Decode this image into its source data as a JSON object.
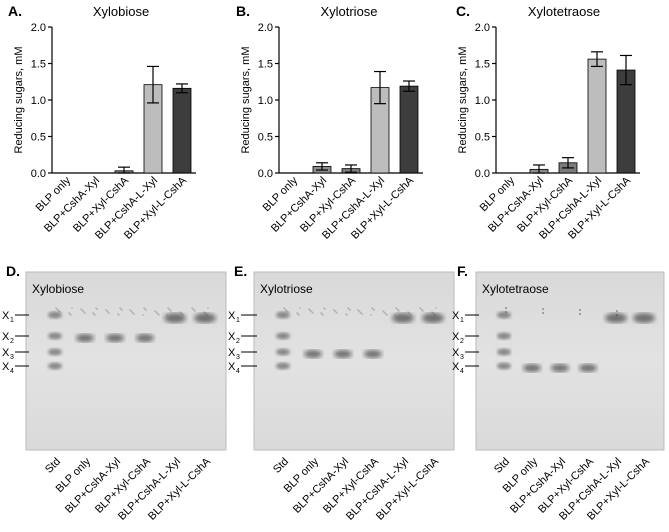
{
  "chart_data": [
    {
      "type": "bar",
      "panel": "A.",
      "title": "Xylobiose",
      "ylabel": "Reducing sugars, mM",
      "ylim": [
        0,
        2.0
      ],
      "yticks": [
        "0.0",
        "0.5",
        "1.0",
        "1.5",
        "2.0"
      ],
      "categories": [
        "BLP only",
        "BLP+CshA-Xyl",
        "BLP+Xyl-CshA",
        "BLP+CshA-L-Xyl",
        "BLP+Xyl-L-CshA"
      ],
      "values": [
        0,
        0,
        0.03,
        1.21,
        1.16
      ],
      "errors": [
        0,
        0,
        0.05,
        0.25,
        0.06
      ],
      "colors": [
        "#a0a0a0",
        "#a0a0a0",
        "#7a7a7a",
        "#bdbdbd",
        "#3d3d3d"
      ]
    },
    {
      "type": "bar",
      "panel": "B.",
      "title": "Xylotriose",
      "ylabel": "Reducing sugars, mM",
      "ylim": [
        0,
        2.0
      ],
      "yticks": [
        "0.0",
        "0.5",
        "1.0",
        "1.5",
        "2.0"
      ],
      "categories": [
        "BLP only",
        "BLP+CshA-Xyl",
        "BLP+Xyl-CshA",
        "BLP+CshA-L-Xyl",
        "BLP+Xyl-L-CshA"
      ],
      "values": [
        0,
        0.09,
        0.06,
        1.17,
        1.19
      ],
      "errors": [
        0,
        0.05,
        0.05,
        0.22,
        0.07
      ],
      "colors": [
        "#a0a0a0",
        "#8c8c8c",
        "#7a7a7a",
        "#bdbdbd",
        "#3d3d3d"
      ]
    },
    {
      "type": "bar",
      "panel": "C.",
      "title": "Xylotetraose",
      "ylabel": "Reducing sugars, mM",
      "ylim": [
        0,
        2.0
      ],
      "yticks": [
        "0.0",
        "0.5",
        "1.0",
        "1.5",
        "2.0"
      ],
      "categories": [
        "BLP only",
        "BLP+CshA-Xyl",
        "BLP+Xyl-CshA",
        "BLP+CshA-L-Xyl",
        "BLP+Xyl-L-CshA"
      ],
      "values": [
        0,
        0.05,
        0.14,
        1.56,
        1.41
      ],
      "errors": [
        0,
        0.06,
        0.07,
        0.1,
        0.2
      ],
      "colors": [
        "#a0a0a0",
        "#8c8c8c",
        "#7a7a7a",
        "#bdbdbd",
        "#3d3d3d"
      ]
    }
  ],
  "gels": [
    {
      "panel": "D.",
      "title": "Xylobiose",
      "markers": [
        "X",
        "X",
        "X",
        "X"
      ],
      "marker_subs": [
        "1",
        "2",
        "3",
        "4"
      ],
      "lanes": [
        "Std",
        "BLP only",
        "BLP+CshA-Xyl",
        "BLP+Xyl-CshA",
        "BLP+CshA-L-Xyl",
        "BLP+Xyl-L-CshA"
      ],
      "sample_band_positions": [
        "X2",
        "X2",
        "X2",
        "X2",
        "X1",
        "X1"
      ]
    },
    {
      "panel": "E.",
      "title": "Xylotriose",
      "markers": [
        "X",
        "X",
        "X",
        "X"
      ],
      "marker_subs": [
        "1",
        "2",
        "3",
        "4"
      ],
      "lanes": [
        "Std",
        "BLP only",
        "BLP+CshA-Xyl",
        "BLP+Xyl-CshA",
        "BLP+CshA-L-Xyl",
        "BLP+Xyl-L-CshA"
      ],
      "sample_band_positions": [
        "X3",
        "X3",
        "X3",
        "X3",
        "X1",
        "X1"
      ]
    },
    {
      "panel": "F.",
      "title": "Xylotetraose",
      "markers": [
        "X",
        "X",
        "X",
        "X"
      ],
      "marker_subs": [
        "1",
        "2",
        "3",
        "4"
      ],
      "lanes": [
        "Std",
        "BLP only",
        "BLP+CshA-Xyl",
        "BLP+Xyl-CshA",
        "BLP+CshA-L-Xyl",
        "BLP+Xyl-L-CshA"
      ],
      "sample_band_positions": [
        "X4",
        "X4",
        "X4",
        "X4",
        "X1",
        "X1"
      ]
    }
  ]
}
